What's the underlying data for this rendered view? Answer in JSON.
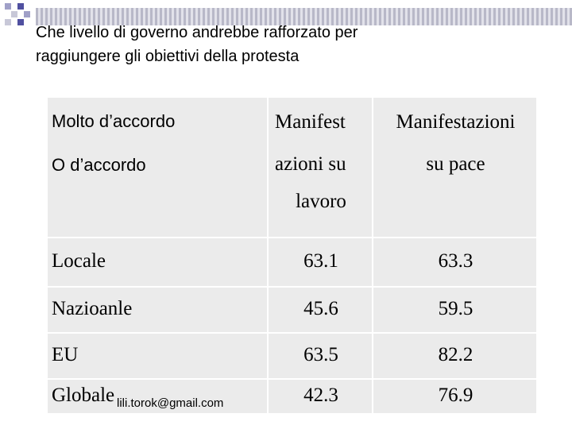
{
  "title": [
    "Che livello di governo andrebbe rafforzato per",
    "raggiungere gli obiettivi della protesta"
  ],
  "table": {
    "header": [
      [
        "Molto d’accordo",
        "O d’accordo"
      ],
      [
        "Manifest",
        "azioni su",
        "lavoro"
      ],
      [
        "Manifestazioni",
        "su pace"
      ]
    ],
    "rows": [
      [
        "Locale",
        63.1,
        63.3
      ],
      [
        "Nazioanle",
        45.6,
        59.5
      ],
      [
        "EU",
        63.5,
        82.2
      ],
      [
        "Globale",
        42.3,
        76.9
      ]
    ]
  },
  "footer": "lili.torok@gmail.com"
}
